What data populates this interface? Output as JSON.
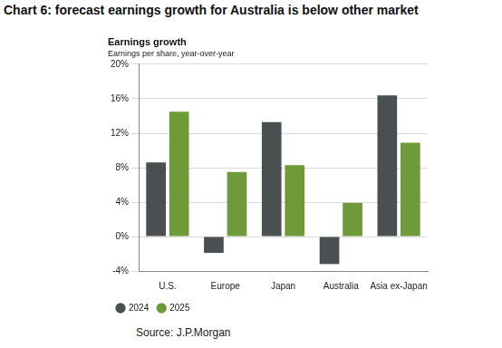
{
  "heading": "Chart 6: forecast earnings growth for Australia is below other market",
  "source": "Source: J.P.Morgan",
  "chart_data": {
    "type": "bar",
    "title": "Earnings growth",
    "subtitle": "Earnings per share, year-over-year",
    "categories": [
      "U.S.",
      "Europe",
      "Japan",
      "Australia",
      "Asia ex-Japan"
    ],
    "series": [
      {
        "name": "2024",
        "color": "#4a4f52",
        "values": [
          8.6,
          -1.9,
          13.3,
          -3.2,
          16.4
        ]
      },
      {
        "name": "2025",
        "color": "#6f9a3a",
        "values": [
          14.5,
          7.5,
          8.3,
          3.9,
          10.9
        ]
      }
    ],
    "ylim": [
      -4,
      20
    ],
    "yticks": [
      {
        "value": -4,
        "label": "-4%"
      },
      {
        "value": 0,
        "label": "0%"
      },
      {
        "value": 4,
        "label": "4%"
      },
      {
        "value": 8,
        "label": "8%"
      },
      {
        "value": 12,
        "label": "12%"
      },
      {
        "value": 16,
        "label": "16%"
      },
      {
        "value": 20,
        "label": "20%"
      }
    ],
    "grid": true,
    "legend": "bottom"
  }
}
